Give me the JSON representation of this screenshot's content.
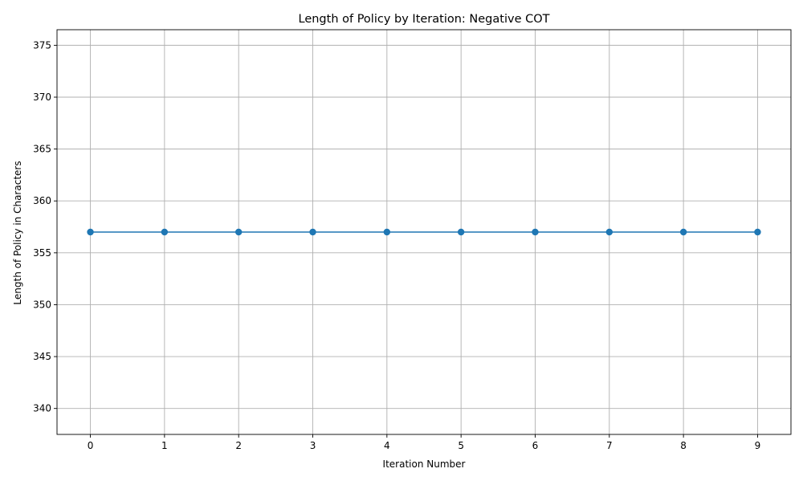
{
  "chart_data": {
    "type": "line",
    "title": "Length of Policy by Iteration: Negative COT",
    "xlabel": "Iteration Number",
    "ylabel": "Length of Policy in Characters",
    "x": [
      0,
      1,
      2,
      3,
      4,
      5,
      6,
      7,
      8,
      9
    ],
    "series": [
      {
        "values": [
          357,
          357,
          357,
          357,
          357,
          357,
          357,
          357,
          357,
          357
        ]
      }
    ],
    "xticks": [
      0,
      1,
      2,
      3,
      4,
      5,
      6,
      7,
      8,
      9
    ],
    "yticks": [
      340,
      345,
      350,
      355,
      360,
      365,
      370,
      375
    ],
    "xlim": [
      -0.45,
      9.45
    ],
    "ylim": [
      337.5,
      376.5
    ],
    "grid": true,
    "line_color": "#1f77b4",
    "marker": "circle"
  }
}
